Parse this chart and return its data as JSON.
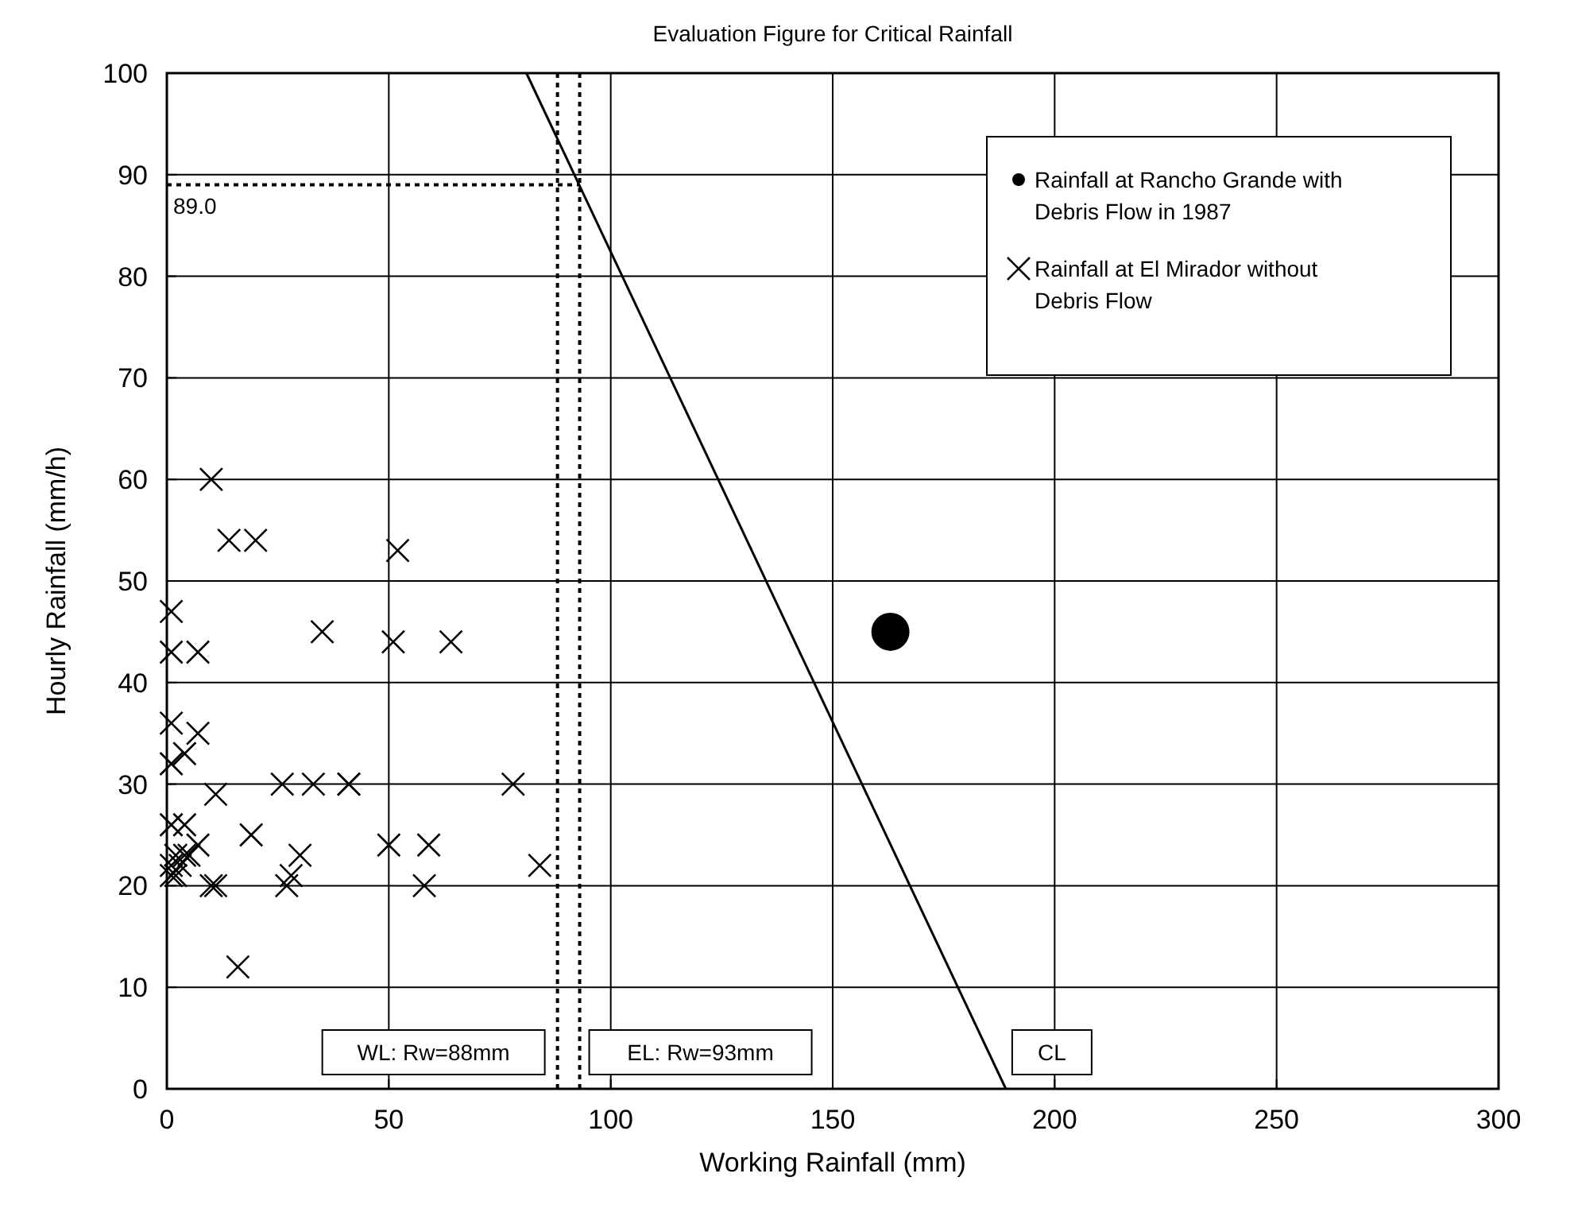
{
  "chart_data": {
    "type": "scatter",
    "title": "Evaluation Figure for Critical Rainfall",
    "xlabel": "Working Rainfall (mm)",
    "ylabel": "Hourly Rainfall (mm/h)",
    "xlim": [
      0,
      300
    ],
    "xticks": [
      0,
      50,
      100,
      150,
      200,
      250,
      300
    ],
    "ylim": [
      0,
      100
    ],
    "yticks": [
      0,
      10,
      20,
      30,
      40,
      50,
      60,
      70,
      80,
      90,
      100
    ],
    "grid": true,
    "legend": "top right",
    "series": [
      {
        "name": "Rainfall at Rancho Grande with Debris Flow in 1987",
        "color": "#000000",
        "marker": "circle",
        "x": [
          163
        ],
        "values": [
          45
        ]
      },
      {
        "name": "Rainfall at El Mirador without Debris Flow",
        "color": "#000000",
        "marker": "cross",
        "x": [
          10,
          14,
          20,
          52,
          1,
          1,
          7,
          35,
          51,
          64,
          1,
          7,
          4,
          1,
          11,
          26,
          33,
          41,
          41,
          78,
          1,
          4,
          7,
          19,
          30,
          50,
          59,
          84,
          1,
          2,
          3,
          1,
          4,
          2,
          5,
          10,
          11,
          27,
          28,
          58,
          16
        ],
        "values": [
          60,
          54,
          54,
          53,
          47,
          43,
          43,
          45,
          44,
          44,
          36,
          35,
          33,
          32,
          29,
          30,
          30,
          30,
          30,
          30,
          26,
          26,
          24,
          25,
          23,
          24,
          24,
          22,
          22,
          21,
          22,
          21,
          23,
          23,
          23,
          20,
          20,
          20,
          21,
          20,
          12
        ]
      },
      {
        "type": "line",
        "color": "#000000",
        "x": [
          81,
          189
        ],
        "values": [
          100,
          0
        ]
      }
    ],
    "ref_lines": [
      {
        "axis": "x",
        "value": 88,
        "label": "WL: Rw=88mm",
        "line_style": "dotted"
      },
      {
        "axis": "x",
        "value": 93,
        "label": "EL: Rw=93mm",
        "line_style": "dotted"
      },
      {
        "axis": "y",
        "value": 89,
        "label": "89.0",
        "line_style": "dotted"
      }
    ],
    "annotations": [
      {
        "text": "CL",
        "x": 189,
        "y": 0
      }
    ]
  }
}
